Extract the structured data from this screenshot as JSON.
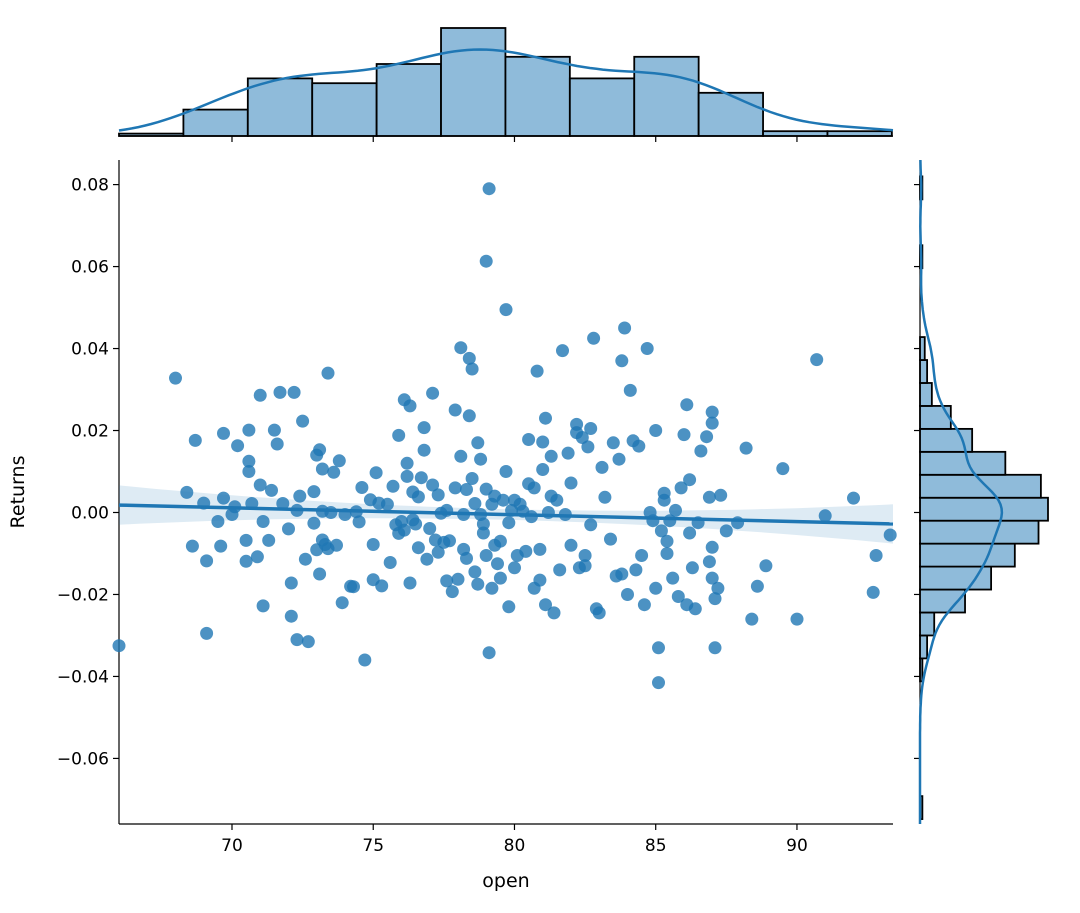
{
  "chart_data": {
    "type": "scatter",
    "kind": "jointplot with regression and marginal histograms",
    "xlabel": "open",
    "ylabel": "Returns",
    "xlim": [
      66,
      93.4
    ],
    "ylim": [
      -0.076,
      0.086
    ],
    "x_ticks": [
      70,
      75,
      80,
      85,
      90
    ],
    "y_ticks": [
      -0.06,
      -0.04,
      -0.02,
      0.0,
      0.02,
      0.04,
      0.06,
      0.08
    ],
    "x_tick_labels": [
      "70",
      "75",
      "80",
      "85",
      "90"
    ],
    "y_tick_labels": [
      "−0.06",
      "−0.04",
      "−0.02",
      "0.00",
      "0.02",
      "0.04",
      "0.06",
      "0.08"
    ],
    "grid": false,
    "color": "#1f77b4",
    "hist_fill": "#8fbbda",
    "regression": {
      "slope": -0.000168,
      "intercept": 0.0129,
      "ci_halfwidth_edge": 0.0048,
      "ci_halfwidth_center": 0.0013
    },
    "points": [
      [
        66.0,
        -0.0325
      ],
      [
        68.0,
        0.0328
      ],
      [
        68.4,
        0.0049
      ],
      [
        68.6,
        -0.0082
      ],
      [
        68.7,
        0.0176
      ],
      [
        69.0,
        0.0023
      ],
      [
        69.1,
        -0.0118
      ],
      [
        69.1,
        -0.0295
      ],
      [
        69.5,
        -0.0022
      ],
      [
        69.6,
        -0.0082
      ],
      [
        69.7,
        0.0193
      ],
      [
        69.7,
        0.0035
      ],
      [
        70.0,
        -0.0005
      ],
      [
        70.1,
        0.0014
      ],
      [
        70.2,
        0.0163
      ],
      [
        70.5,
        -0.0068
      ],
      [
        70.5,
        -0.0119
      ],
      [
        70.6,
        0.0201
      ],
      [
        70.6,
        0.0125
      ],
      [
        70.6,
        0.01
      ],
      [
        70.7,
        0.0022
      ],
      [
        70.9,
        -0.0108
      ],
      [
        71.0,
        0.0067
      ],
      [
        71.0,
        0.0286
      ],
      [
        71.1,
        -0.0022
      ],
      [
        71.1,
        -0.0228
      ],
      [
        71.3,
        -0.0068
      ],
      [
        71.4,
        0.0054
      ],
      [
        71.5,
        0.0201
      ],
      [
        71.6,
        0.0167
      ],
      [
        71.7,
        0.0293
      ],
      [
        71.8,
        0.0022
      ],
      [
        72.0,
        -0.004
      ],
      [
        72.1,
        -0.0172
      ],
      [
        72.1,
        -0.0253
      ],
      [
        72.2,
        0.0293
      ],
      [
        72.3,
        -0.031
      ],
      [
        72.3,
        0.0005
      ],
      [
        72.4,
        0.004
      ],
      [
        72.5,
        0.0223
      ],
      [
        72.6,
        -0.0114
      ],
      [
        72.7,
        -0.0315
      ],
      [
        72.9,
        0.0051
      ],
      [
        72.9,
        -0.0026
      ],
      [
        73.0,
        0.014
      ],
      [
        73.0,
        -0.0091
      ],
      [
        73.1,
        0.0153
      ],
      [
        73.1,
        -0.015
      ],
      [
        73.2,
        0.0106
      ],
      [
        73.2,
        -0.0067
      ],
      [
        73.2,
        0.0003
      ],
      [
        73.3,
        -0.0078
      ],
      [
        73.4,
        0.034
      ],
      [
        73.4,
        -0.0088
      ],
      [
        73.5,
        0.0
      ],
      [
        73.6,
        0.0098
      ],
      [
        73.7,
        -0.008
      ],
      [
        73.8,
        0.0126
      ],
      [
        73.9,
        -0.022
      ],
      [
        74.0,
        -0.0005
      ],
      [
        74.2,
        -0.018
      ],
      [
        74.3,
        -0.0181
      ],
      [
        74.4,
        0.0002
      ],
      [
        74.5,
        -0.0023
      ],
      [
        74.6,
        0.0061
      ],
      [
        74.7,
        -0.036
      ],
      [
        74.9,
        0.0031
      ],
      [
        75.0,
        -0.0078
      ],
      [
        75.0,
        -0.0164
      ],
      [
        75.1,
        0.0097
      ],
      [
        75.2,
        0.0023
      ],
      [
        75.3,
        -0.0179
      ],
      [
        75.5,
        0.002
      ],
      [
        75.6,
        -0.0122
      ],
      [
        75.7,
        0.0064
      ],
      [
        75.8,
        -0.003
      ],
      [
        75.9,
        -0.0051
      ],
      [
        75.9,
        0.0188
      ],
      [
        76.0,
        -0.0022
      ],
      [
        76.1,
        0.0275
      ],
      [
        76.1,
        -0.0043
      ],
      [
        76.2,
        0.012
      ],
      [
        76.2,
        0.0088
      ],
      [
        76.3,
        0.026
      ],
      [
        76.3,
        -0.0172
      ],
      [
        76.4,
        -0.0018
      ],
      [
        76.4,
        0.005
      ],
      [
        76.5,
        -0.0028
      ],
      [
        76.6,
        0.0038
      ],
      [
        76.6,
        -0.0086
      ],
      [
        76.7,
        0.0085
      ],
      [
        76.8,
        0.0152
      ],
      [
        76.8,
        0.0207
      ],
      [
        76.9,
        -0.0114
      ],
      [
        77.0,
        -0.0039
      ],
      [
        77.1,
        0.0067
      ],
      [
        77.1,
        0.0291
      ],
      [
        77.2,
        -0.0067
      ],
      [
        77.3,
        -0.0097
      ],
      [
        77.3,
        0.0043
      ],
      [
        77.4,
        -0.0002
      ],
      [
        77.5,
        -0.0073
      ],
      [
        77.6,
        -0.0167
      ],
      [
        77.6,
        0.0005
      ],
      [
        77.7,
        -0.0069
      ],
      [
        77.8,
        -0.0193
      ],
      [
        77.9,
        0.006
      ],
      [
        77.9,
        0.025
      ],
      [
        78.0,
        -0.0163
      ],
      [
        78.1,
        0.0137
      ],
      [
        78.1,
        0.0402
      ],
      [
        78.2,
        -0.0005
      ],
      [
        78.2,
        -0.009
      ],
      [
        78.3,
        0.0056
      ],
      [
        78.3,
        -0.0112
      ],
      [
        78.4,
        0.0236
      ],
      [
        78.4,
        0.0376
      ],
      [
        78.5,
        0.0083
      ],
      [
        78.5,
        0.035
      ],
      [
        78.6,
        0.0022
      ],
      [
        78.6,
        -0.0145
      ],
      [
        78.7,
        -0.0175
      ],
      [
        78.7,
        0.017
      ],
      [
        78.8,
        -0.0005
      ],
      [
        78.8,
        0.013
      ],
      [
        78.9,
        -0.0028
      ],
      [
        78.9,
        -0.005
      ],
      [
        79.0,
        0.0057
      ],
      [
        79.0,
        -0.0105
      ],
      [
        79.0,
        0.0613
      ],
      [
        79.1,
        0.079
      ],
      [
        79.1,
        -0.0342
      ],
      [
        79.2,
        -0.0185
      ],
      [
        79.2,
        0.002
      ],
      [
        79.3,
        -0.008
      ],
      [
        79.3,
        0.004
      ],
      [
        79.4,
        -0.0125
      ],
      [
        79.5,
        -0.016
      ],
      [
        79.5,
        -0.007
      ],
      [
        79.6,
        0.003
      ],
      [
        79.7,
        0.01
      ],
      [
        79.7,
        0.0495
      ],
      [
        79.8,
        -0.0025
      ],
      [
        79.8,
        -0.023
      ],
      [
        79.9,
        0.0005
      ],
      [
        80.0,
        -0.0135
      ],
      [
        80.0,
        0.003
      ],
      [
        80.1,
        -0.0105
      ],
      [
        80.2,
        0.002
      ],
      [
        80.3,
        0.0003
      ],
      [
        80.4,
        -0.0095
      ],
      [
        80.5,
        0.007
      ],
      [
        80.5,
        0.0178
      ],
      [
        80.6,
        -0.001
      ],
      [
        80.7,
        -0.0185
      ],
      [
        80.7,
        0.006
      ],
      [
        80.8,
        0.0345
      ],
      [
        80.9,
        -0.0165
      ],
      [
        80.9,
        -0.009
      ],
      [
        81.0,
        0.0105
      ],
      [
        81.0,
        0.0172
      ],
      [
        81.1,
        -0.0225
      ],
      [
        81.1,
        0.023
      ],
      [
        81.2,
        0.0
      ],
      [
        81.3,
        0.004
      ],
      [
        81.3,
        0.0137
      ],
      [
        81.4,
        -0.0245
      ],
      [
        81.5,
        0.003
      ],
      [
        81.6,
        -0.014
      ],
      [
        81.7,
        0.0395
      ],
      [
        81.8,
        -0.0005
      ],
      [
        81.9,
        0.0145
      ],
      [
        82.0,
        0.0072
      ],
      [
        82.0,
        -0.008
      ],
      [
        82.2,
        0.0215
      ],
      [
        82.2,
        0.0195
      ],
      [
        82.3,
        -0.0135
      ],
      [
        82.4,
        0.0183
      ],
      [
        82.5,
        -0.0105
      ],
      [
        82.5,
        -0.013
      ],
      [
        82.6,
        0.016
      ],
      [
        82.7,
        -0.003
      ],
      [
        82.7,
        0.0205
      ],
      [
        82.8,
        0.0425
      ],
      [
        82.9,
        -0.0235
      ],
      [
        83.0,
        -0.0245
      ],
      [
        83.1,
        0.011
      ],
      [
        83.2,
        0.0037
      ],
      [
        83.4,
        -0.0065
      ],
      [
        83.5,
        0.017
      ],
      [
        83.6,
        -0.0155
      ],
      [
        83.7,
        0.013
      ],
      [
        83.8,
        -0.015
      ],
      [
        83.8,
        0.037
      ],
      [
        83.9,
        0.045
      ],
      [
        84.0,
        -0.02
      ],
      [
        84.1,
        0.0298
      ],
      [
        84.2,
        0.0175
      ],
      [
        84.3,
        -0.014
      ],
      [
        84.4,
        0.0162
      ],
      [
        84.5,
        -0.0105
      ],
      [
        84.6,
        -0.0225
      ],
      [
        84.7,
        0.04
      ],
      [
        84.8,
        0.0
      ],
      [
        84.9,
        -0.002
      ],
      [
        85.0,
        -0.0185
      ],
      [
        85.0,
        0.02
      ],
      [
        85.1,
        -0.033
      ],
      [
        85.1,
        -0.0415
      ],
      [
        85.2,
        -0.0045
      ],
      [
        85.3,
        0.0047
      ],
      [
        85.3,
        0.003
      ],
      [
        85.4,
        -0.01
      ],
      [
        85.4,
        -0.007
      ],
      [
        85.5,
        -0.002
      ],
      [
        85.6,
        -0.016
      ],
      [
        85.7,
        0.0005
      ],
      [
        85.8,
        -0.0205
      ],
      [
        85.9,
        0.006
      ],
      [
        86.0,
        0.019
      ],
      [
        86.1,
        0.0263
      ],
      [
        86.1,
        -0.0225
      ],
      [
        86.2,
        -0.005
      ],
      [
        86.2,
        0.008
      ],
      [
        86.3,
        -0.0135
      ],
      [
        86.4,
        -0.0235
      ],
      [
        86.5,
        -0.0025
      ],
      [
        86.6,
        0.015
      ],
      [
        86.8,
        0.0185
      ],
      [
        86.9,
        -0.012
      ],
      [
        86.9,
        0.0037
      ],
      [
        87.0,
        0.0245
      ],
      [
        87.0,
        0.0218
      ],
      [
        87.0,
        -0.0085
      ],
      [
        87.0,
        -0.016
      ],
      [
        87.1,
        -0.033
      ],
      [
        87.1,
        -0.021
      ],
      [
        87.2,
        -0.0185
      ],
      [
        87.3,
        0.0042
      ],
      [
        87.5,
        -0.0045
      ],
      [
        87.9,
        -0.0025
      ],
      [
        88.2,
        0.0157
      ],
      [
        88.4,
        -0.026
      ],
      [
        88.6,
        -0.018
      ],
      [
        88.9,
        -0.013
      ],
      [
        89.5,
        0.0107
      ],
      [
        90.0,
        -0.026
      ],
      [
        90.7,
        0.0373
      ],
      [
        91.0,
        -0.0008
      ],
      [
        92.0,
        0.0035
      ],
      [
        92.7,
        -0.0195
      ],
      [
        92.8,
        -0.0105
      ],
      [
        93.3,
        -0.0055
      ]
    ],
    "top_histogram": {
      "bin_edges": [
        66.0,
        68.28,
        70.56,
        72.84,
        75.12,
        77.4,
        79.68,
        81.96,
        84.24,
        86.52,
        88.8,
        91.08,
        93.36
      ],
      "counts": [
        1,
        11,
        24,
        22,
        30,
        45,
        33,
        24,
        33,
        18,
        2,
        2
      ]
    },
    "right_histogram": {
      "bin_edges": [
        -0.0748,
        -0.0692,
        -0.0636,
        -0.058,
        -0.0524,
        -0.0468,
        -0.0412,
        -0.0356,
        -0.03,
        -0.0244,
        -0.0188,
        -0.0132,
        -0.0076,
        -0.002,
        0.0036,
        0.0092,
        0.0148,
        0.0204,
        0.026,
        0.0316,
        0.0372,
        0.0428,
        0.0484,
        0.054,
        0.0596,
        0.0652,
        0.0708,
        0.0764,
        0.082
      ],
      "counts": [
        1,
        0,
        0,
        0,
        0,
        0,
        1,
        3,
        6,
        19,
        30,
        40,
        50,
        54,
        51,
        36,
        22,
        13,
        5,
        3,
        2,
        0,
        0,
        0,
        1,
        0,
        0,
        1
      ]
    }
  }
}
